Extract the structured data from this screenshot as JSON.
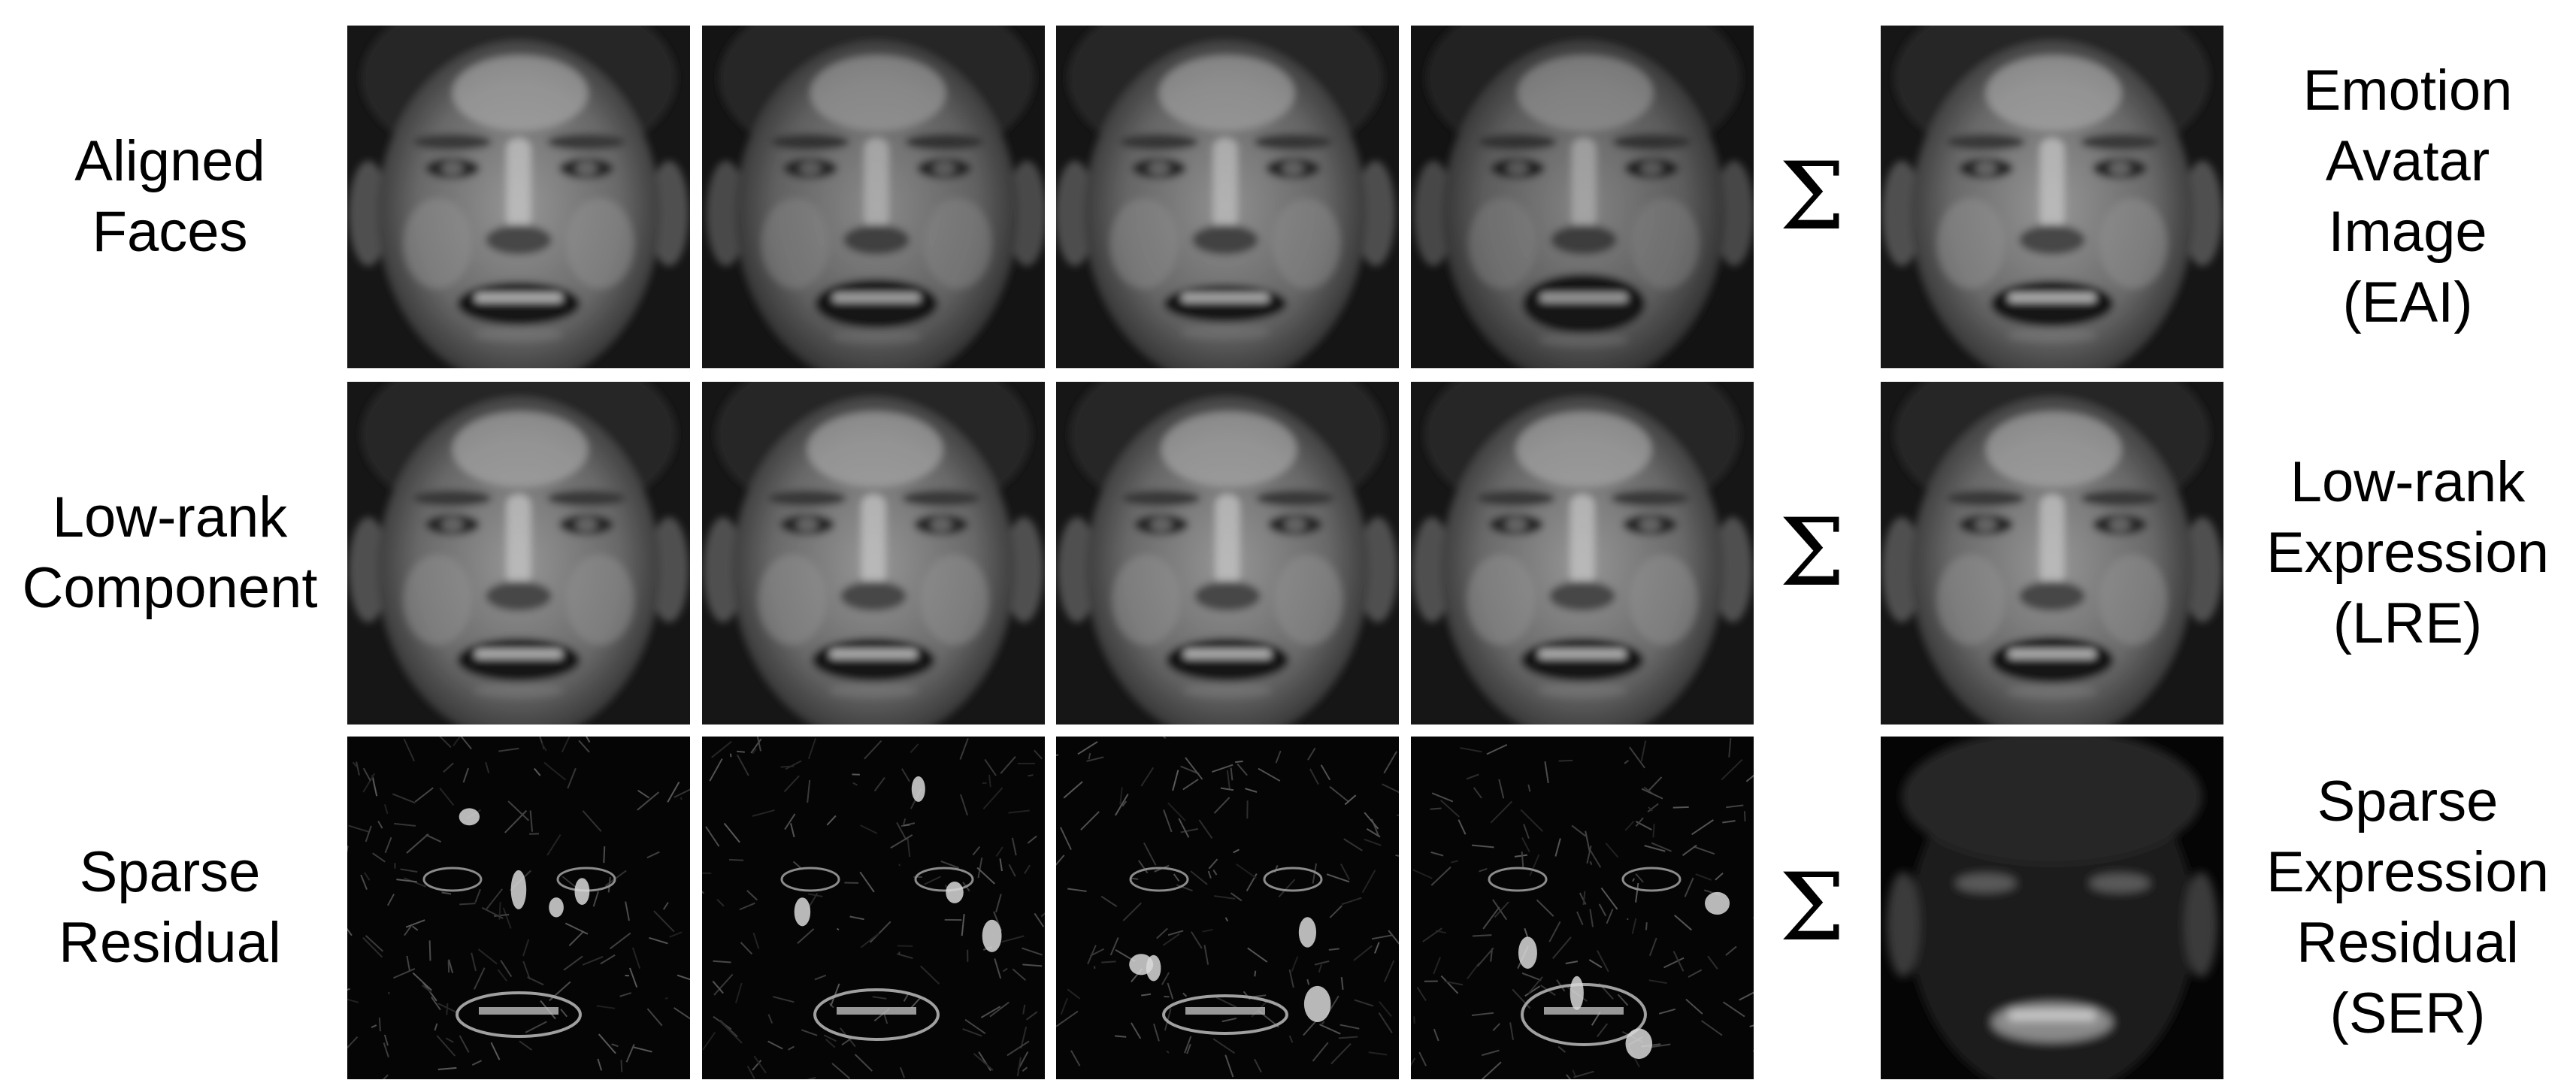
{
  "rows": [
    {
      "id": "aligned",
      "kind": "face",
      "label_lines": [
        "Aligned",
        "Faces"
      ],
      "result_lines": [
        "Emotion",
        "Avatar",
        "Image",
        "(EAI)"
      ]
    },
    {
      "id": "lowrank",
      "kind": "face",
      "label_lines": [
        "Low-rank",
        "Component"
      ],
      "result_lines": [
        "Low-rank",
        "Expression",
        "(LRE)"
      ]
    },
    {
      "id": "sparse",
      "kind": "residual",
      "label_lines": [
        "Sparse",
        "Residual"
      ],
      "result_lines": [
        "Sparse",
        "Expression",
        "Residual",
        "(SER)"
      ]
    }
  ],
  "sigma_symbol": "Σ",
  "frames_per_row": 4
}
